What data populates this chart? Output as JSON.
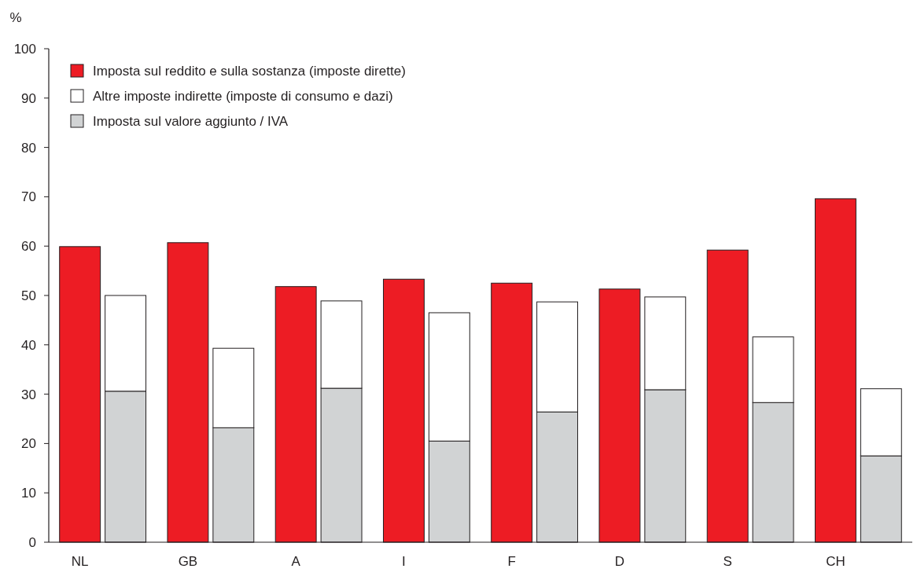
{
  "chart_data": {
    "type": "bar",
    "ylabel": "%",
    "categories": [
      "NL",
      null,
      "GB",
      null,
      "A",
      null,
      "I",
      null,
      "F",
      null,
      "D",
      null,
      "S",
      null,
      "CH",
      null
    ],
    "stacked": true,
    "ylim": [
      0,
      100
    ],
    "yticks": [
      0,
      10,
      20,
      30,
      40,
      50,
      60,
      70,
      80,
      90,
      100
    ],
    "legend": "top left",
    "grid": false,
    "series": [
      {
        "name": "Imposta sul reddito e sulla sostanza (imposte dirette)",
        "color": "#ed1c24",
        "values": [
          59.9,
          null,
          60.7,
          null,
          51.8,
          null,
          53.3,
          null,
          52.5,
          null,
          51.3,
          null,
          59.2,
          null,
          69.6,
          null
        ]
      },
      {
        "name": "Imposta sul valore aggiunto / IVA",
        "color": "#d1d3d4",
        "values": [
          null,
          30.6,
          null,
          23.2,
          null,
          31.2,
          null,
          20.5,
          null,
          26.4,
          null,
          30.9,
          null,
          28.3,
          null,
          17.5
        ]
      },
      {
        "name": "Altre imposte indirette (imposte di consumo e dazi)",
        "color": "#ffffff",
        "values": [
          null,
          19.4,
          null,
          16.1,
          null,
          17.7,
          null,
          26.0,
          null,
          22.3,
          null,
          18.8,
          null,
          13.3,
          null,
          13.6
        ]
      }
    ]
  }
}
